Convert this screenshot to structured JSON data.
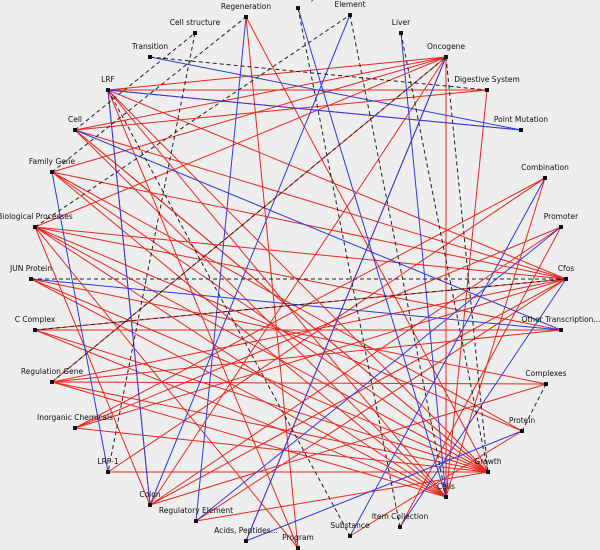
{
  "nodes": [
    {
      "label": "Regeneration"
    },
    {
      "label": "Anatomy"
    },
    {
      "label": "Element"
    },
    {
      "label": "Liver"
    },
    {
      "label": "Cell structure"
    },
    {
      "label": "Transition"
    },
    {
      "label": "Oncogene"
    },
    {
      "label": "LRF"
    },
    {
      "label": "Digestive System"
    },
    {
      "label": "Point Mutation"
    },
    {
      "label": "Cell"
    },
    {
      "label": "Family Gene"
    },
    {
      "label": "Combination"
    },
    {
      "label": "Biological Processes"
    },
    {
      "label": "Promoter"
    },
    {
      "label": "JUN Protein"
    },
    {
      "label": "Cfos"
    },
    {
      "label": "C Complex"
    },
    {
      "label": "Other Transcription..."
    },
    {
      "label": "Regulation Gene"
    },
    {
      "label": "Complexes"
    },
    {
      "label": "Inorganic Chemicals"
    },
    {
      "label": "Protein"
    },
    {
      "label": "LRF-1"
    },
    {
      "label": "Growth"
    },
    {
      "label": "Colon"
    },
    {
      "label": "Cells"
    },
    {
      "label": "Regulatory Element"
    },
    {
      "label": "Item Collection"
    },
    {
      "label": "Acids, Peptides..."
    },
    {
      "label": "Substance"
    },
    {
      "label": "Program"
    }
  ]
}
